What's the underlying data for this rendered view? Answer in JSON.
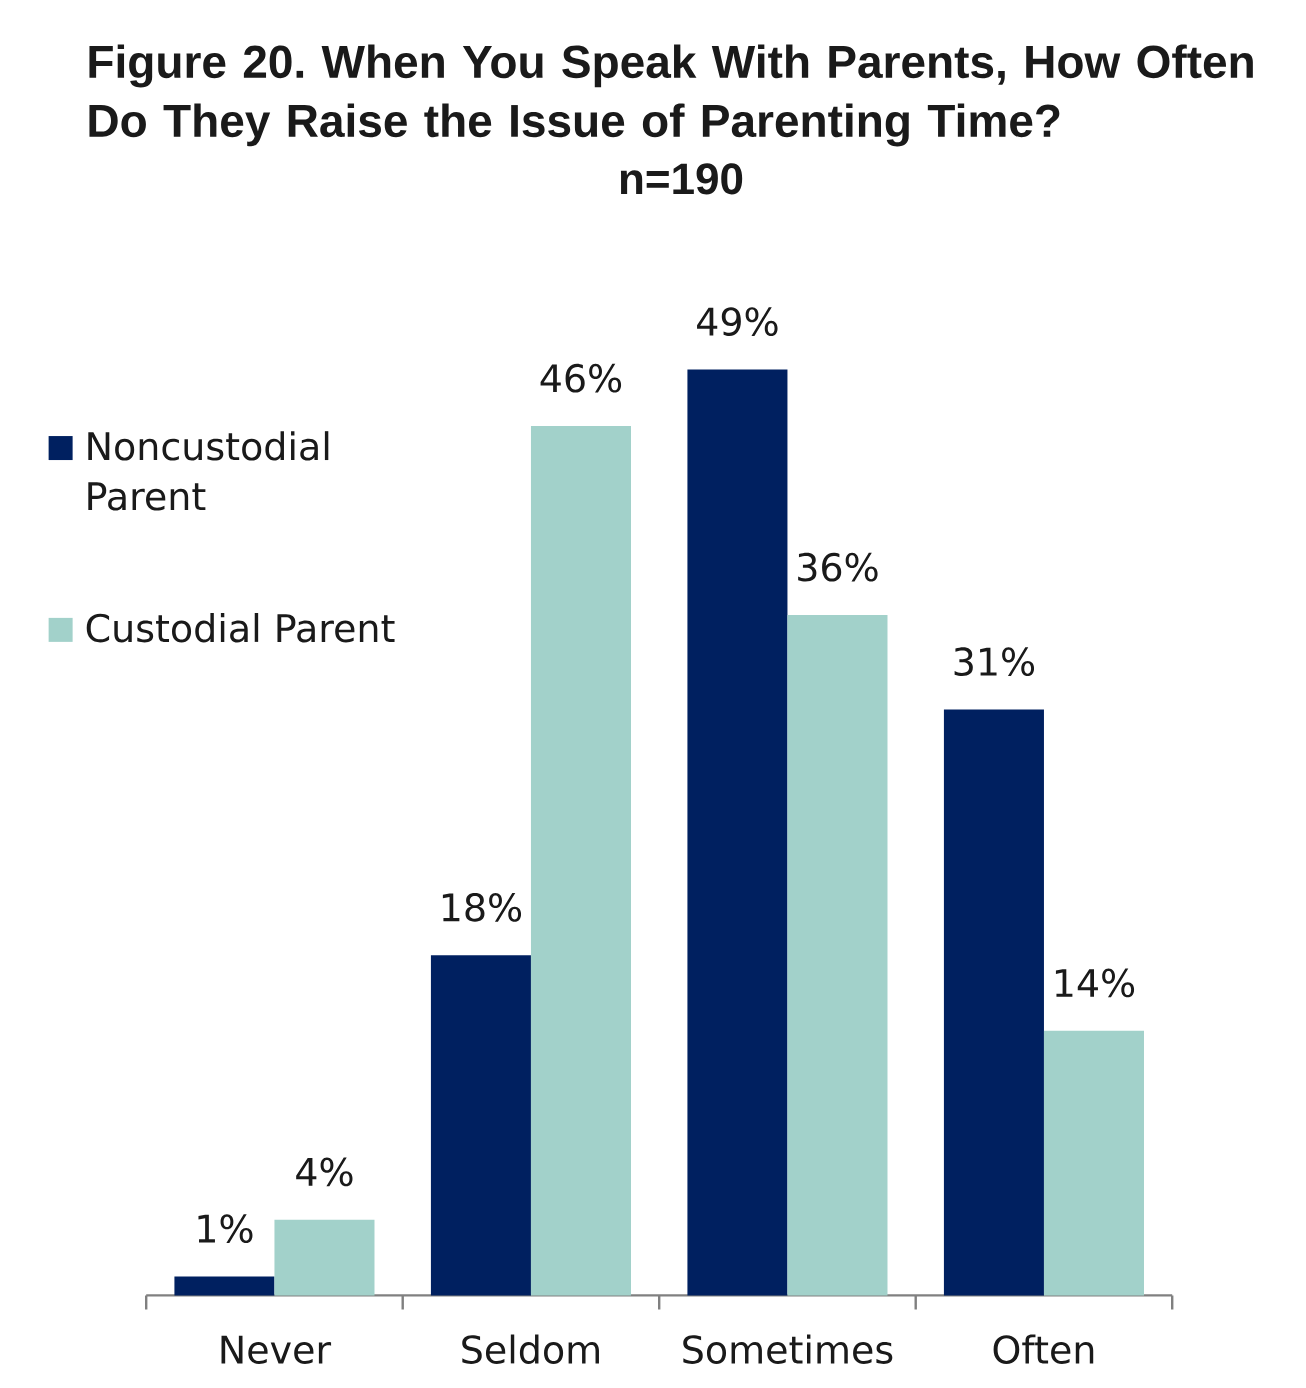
{
  "chart_data": {
    "type": "bar",
    "title": "Figure 20. When You Speak With Parents, How Often Do They Raise the Issue of Parenting Time?",
    "subtitle": "n=190",
    "categories": [
      "Never",
      "Seldom",
      "Sometimes",
      "Often"
    ],
    "series": [
      {
        "name": "Noncustodial Parent",
        "color": "#002060",
        "values": [
          1,
          18,
          49,
          31
        ],
        "value_labels": [
          "1%",
          "18%",
          "49%",
          "31%"
        ]
      },
      {
        "name": "Custodial Parent",
        "color": "#a2d1ca",
        "values": [
          4,
          46,
          36,
          14
        ],
        "value_labels": [
          "4%",
          "46%",
          "36%",
          "14%"
        ]
      }
    ],
    "legend": "top left"
  }
}
